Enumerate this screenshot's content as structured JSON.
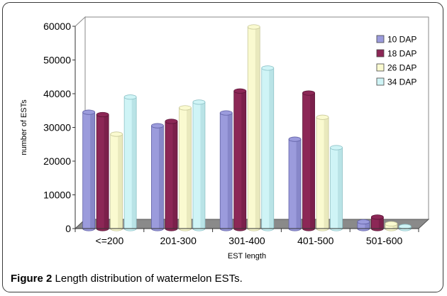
{
  "chart_data": {
    "type": "bar",
    "style": "3d-clustered-column",
    "categories": [
      "<=200",
      "201-300",
      "301-400",
      "401-500",
      "501-600"
    ],
    "series": [
      {
        "name": "10 DAP",
        "values": [
          34500,
          30500,
          34300,
          26500,
          2000
        ],
        "color": "#9b9bdc",
        "dark": "#6262a6"
      },
      {
        "name": "18 DAP",
        "values": [
          33800,
          31800,
          40800,
          40200,
          3400
        ],
        "color": "#8c2756",
        "dark": "#5c1537"
      },
      {
        "name": "26 DAP",
        "values": [
          28000,
          35800,
          59800,
          33000,
          1400
        ],
        "color": "#fafad0",
        "dark": "#c8c89a"
      },
      {
        "name": "34 DAP",
        "values": [
          39000,
          37500,
          47600,
          24000,
          600
        ],
        "color": "#cff4f6",
        "dark": "#8fc3c8"
      }
    ],
    "xlabel": "EST length",
    "ylabel": "number of ESTs",
    "ylim": [
      0,
      60000
    ],
    "yticks": [
      "0",
      "10000",
      "20000",
      "30000",
      "40000",
      "50000",
      "60000"
    ],
    "grid": false,
    "legend_position": "top-right"
  },
  "caption": {
    "label": "Figure 2",
    "text": " Length distribution of watermelon ESTs."
  }
}
